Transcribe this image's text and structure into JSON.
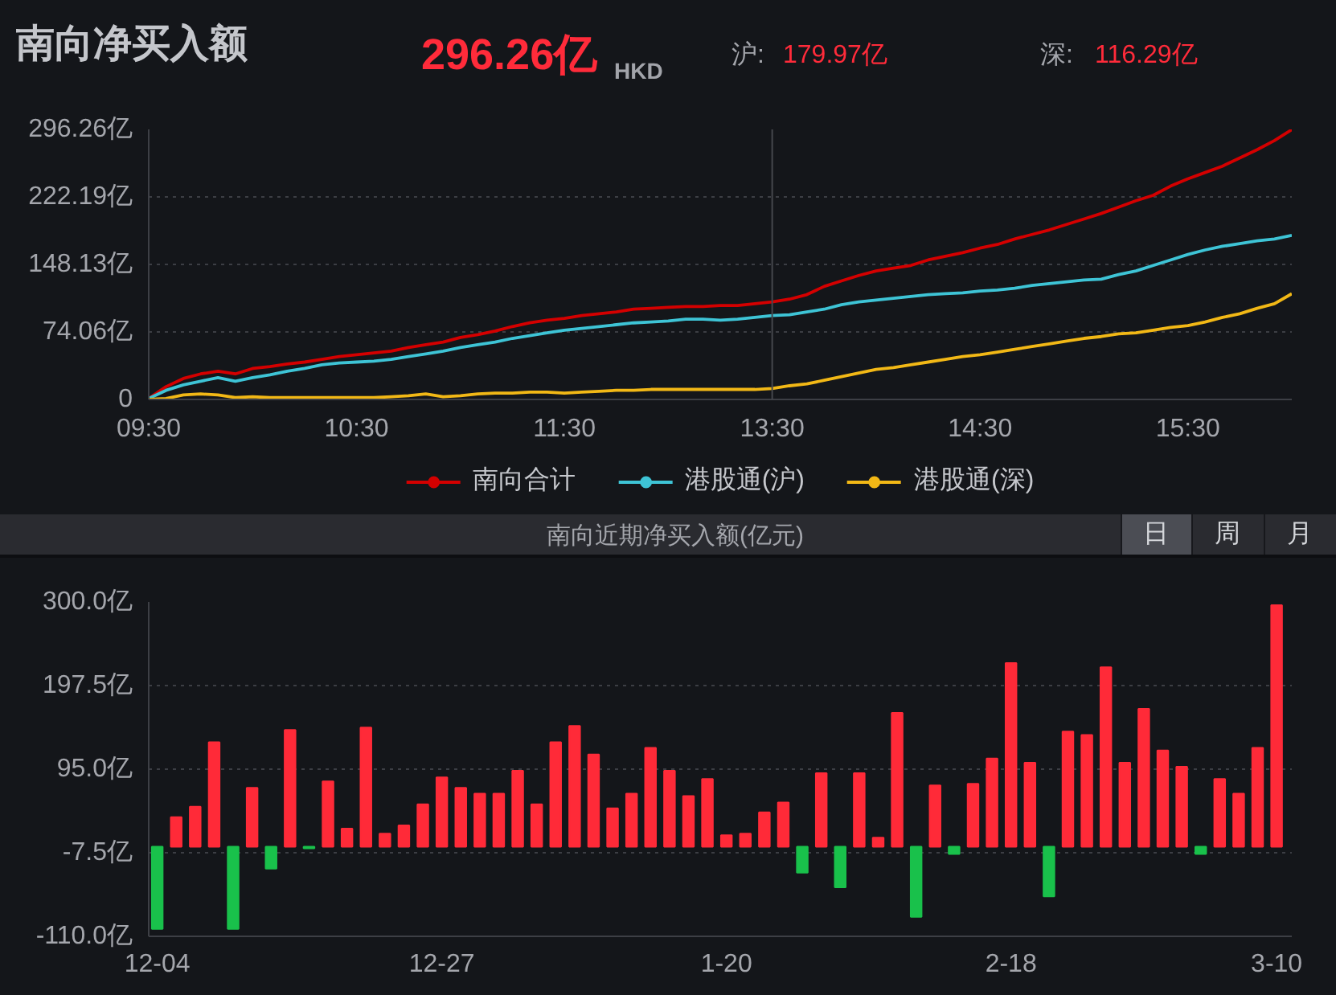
{
  "chart_data": [
    {
      "type": "line",
      "title": "南向净买入额",
      "annotations": [
        "296.26亿",
        "HKD",
        "沪:",
        "179.97亿",
        "深:",
        "116.29亿"
      ],
      "categories": [
        "09:30",
        null,
        null,
        null,
        null,
        null,
        null,
        null,
        null,
        null,
        null,
        null,
        "10:30",
        null,
        null,
        null,
        null,
        null,
        null,
        null,
        null,
        null,
        null,
        null,
        "11:30",
        null,
        null,
        null,
        null,
        null,
        null,
        null,
        null,
        null,
        null,
        null,
        "13:30",
        null,
        null,
        null,
        null,
        null,
        null,
        null,
        null,
        null,
        null,
        null,
        "14:30",
        null,
        null,
        null,
        null,
        null,
        null,
        null,
        null,
        null,
        null,
        null,
        "15:30",
        null,
        null,
        null,
        null,
        null,
        null
      ],
      "ylim": [
        0,
        296.26
      ],
      "yticks": [
        0,
        {
          "value": 74.06,
          "label": "74.06亿"
        },
        {
          "value": 148.13,
          "label": "148.13亿"
        },
        {
          "value": 222.19,
          "label": "222.19亿"
        },
        {
          "value": 296.26,
          "label": "296.26亿"
        }
      ],
      "grid": "y",
      "legend": "bottom",
      "ref_lines": [
        {
          "axis": "x",
          "value": "13:30",
          "color": "#45474d"
        }
      ],
      "series": [
        {
          "name": "南向合计",
          "color": "#d40000",
          "values": [
            1,
            14,
            23,
            28,
            31,
            28,
            34,
            36,
            39,
            41,
            44,
            47,
            49,
            51,
            53,
            57,
            60,
            63,
            68,
            71,
            75,
            80,
            84,
            87,
            89,
            92,
            94,
            96,
            99,
            100,
            101,
            102,
            102,
            103,
            103,
            105,
            107,
            110,
            115,
            124,
            130,
            136,
            141,
            144,
            147,
            153,
            157,
            161,
            166,
            170,
            176,
            181,
            186,
            192,
            198,
            204,
            211,
            218,
            224,
            234,
            242,
            249,
            256,
            265,
            274,
            284,
            296
          ]
        },
        {
          "name": "港股通(沪)",
          "color": "#3ec4d6",
          "values": [
            1,
            10,
            16,
            20,
            24,
            20,
            24,
            27,
            31,
            34,
            38,
            40,
            41,
            42,
            44,
            47,
            50,
            53,
            57,
            60,
            63,
            67,
            70,
            73,
            76,
            78,
            80,
            82,
            84,
            85,
            86,
            88,
            88,
            87,
            88,
            90,
            92,
            93,
            96,
            99,
            104,
            107,
            109,
            111,
            113,
            115,
            116,
            117,
            119,
            120,
            122,
            125,
            127,
            129,
            131,
            132,
            137,
            141,
            147,
            153,
            159,
            164,
            168,
            171,
            174,
            176,
            180
          ]
        },
        {
          "name": "港股通(深)",
          "color": "#f2b816",
          "values": [
            0,
            1,
            5,
            6,
            5,
            2,
            3,
            2,
            2,
            2,
            2,
            2,
            2,
            2,
            3,
            4,
            6,
            3,
            4,
            6,
            7,
            7,
            8,
            8,
            7,
            8,
            9,
            10,
            10,
            11,
            11,
            11,
            11,
            11,
            11,
            11,
            12,
            15,
            17,
            21,
            25,
            29,
            33,
            35,
            38,
            41,
            44,
            47,
            49,
            52,
            55,
            58,
            61,
            64,
            67,
            69,
            72,
            73,
            76,
            79,
            81,
            85,
            90,
            94,
            100,
            105,
            116
          ]
        }
      ]
    },
    {
      "type": "bar",
      "title": "南向近期净买入额(亿元)",
      "annotations": [
        "日",
        "周",
        "月"
      ],
      "categories": [
        "12-04",
        null,
        null,
        null,
        null,
        null,
        null,
        null,
        null,
        null,
        null,
        null,
        null,
        null,
        null,
        "12-27",
        null,
        null,
        null,
        null,
        null,
        null,
        null,
        null,
        null,
        null,
        null,
        null,
        null,
        null,
        "1-20",
        null,
        null,
        null,
        null,
        null,
        null,
        null,
        null,
        null,
        null,
        null,
        null,
        null,
        null,
        "2-18",
        null,
        null,
        null,
        null,
        null,
        null,
        null,
        null,
        null,
        null,
        null,
        null,
        null,
        "3-10"
      ],
      "values": [
        -101,
        36,
        49,
        128,
        -101,
        72,
        -27,
        143,
        -2,
        80,
        22,
        146,
        16,
        26,
        52,
        85,
        72,
        65,
        65,
        93,
        52,
        128,
        148,
        113,
        47,
        65,
        121,
        93,
        62,
        83,
        14,
        16,
        42,
        54,
        -32,
        90,
        -50,
        90,
        11,
        164,
        -86,
        75,
        -9,
        77,
        108,
        225,
        103,
        -61,
        141,
        137,
        220,
        103,
        169,
        118,
        98,
        -9,
        83,
        65,
        121,
        296
      ],
      "colors": [
        "#19c14b",
        "#ff2a38",
        "#ff2a38",
        "#ff2a38",
        "#19c14b",
        "#ff2a38",
        "#19c14b",
        "#ff2a38",
        "#19c14b",
        "#ff2a38",
        "#ff2a38",
        "#ff2a38",
        "#ff2a38",
        "#ff2a38",
        "#ff2a38",
        "#ff2a38",
        "#ff2a38",
        "#ff2a38",
        "#ff2a38",
        "#ff2a38",
        "#ff2a38",
        "#ff2a38",
        "#ff2a38",
        "#ff2a38",
        "#ff2a38",
        "#ff2a38",
        "#ff2a38",
        "#ff2a38",
        "#ff2a38",
        "#ff2a38",
        "#ff2a38",
        "#ff2a38",
        "#ff2a38",
        "#ff2a38",
        "#19c14b",
        "#ff2a38",
        "#19c14b",
        "#ff2a38",
        "#ff2a38",
        "#ff2a38",
        "#19c14b",
        "#ff2a38",
        "#19c14b",
        "#ff2a38",
        "#ff2a38",
        "#ff2a38",
        "#ff2a38",
        "#19c14b",
        "#ff2a38",
        "#ff2a38",
        "#ff2a38",
        "#ff2a38",
        "#ff2a38",
        "#ff2a38",
        "#ff2a38",
        "#19c14b",
        "#ff2a38",
        "#ff2a38",
        "#ff2a38",
        "#ff2a38"
      ],
      "ylim": [
        -110,
        300
      ],
      "yticks": [
        {
          "value": -110,
          "label": "-110.0亿"
        },
        {
          "value": -7.5,
          "label": "-7.5亿"
        },
        {
          "value": 95,
          "label": "95.0亿"
        },
        {
          "value": 197.5,
          "label": "197.5亿"
        },
        {
          "value": 300,
          "label": "300.0亿"
        }
      ],
      "grid": "y"
    }
  ]
}
